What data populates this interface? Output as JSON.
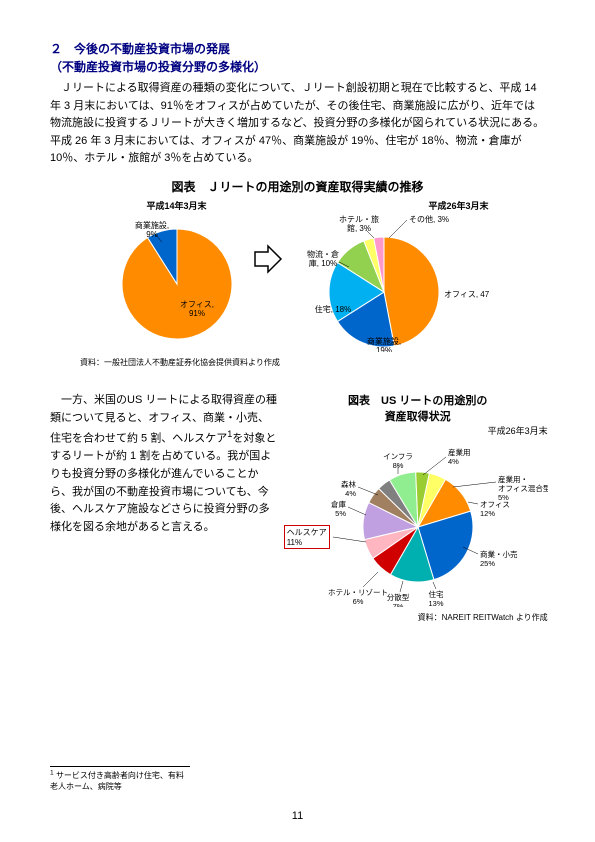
{
  "heading": {
    "line1": "２　今後の不動産投資市場の発展",
    "line2": "（不動産投資市場の投資分野の多様化）"
  },
  "para1": "Ｊリートによる取得資産の種類の変化について、Ｊリート創設初期と現在で比較すると、平成 14 年 3 月末においては、91％をオフィスが占めていたが、その後住宅、商業施設に広がり、近年では物流施設に投資するＪリートが大きく増加するなど、投資分野の多様化が図られている状況にある。平成 26 年 3 月末においては、オフィスが 47％、商業施設が 19％、住宅が 18％、物流・倉庫が 10％、ホテル・旅館が 3％を占めている。",
  "chart1": {
    "title": "図表　Ｊリートの用途別の資産取得実績の推移",
    "left_date": "平成14年3月末",
    "right_date": "平成26年3月末",
    "source": "資料：一般社団法人不動産証券化協会提供資料より作成",
    "left_pie": {
      "slices": [
        {
          "name": "オフィス",
          "pct": 91,
          "label": "オフィス,\n91%",
          "color": "#ff8c00"
        },
        {
          "name": "商業施設",
          "pct": 9,
          "label": "商業施設,\n9%",
          "color": "#0066cc"
        }
      ],
      "size": 110
    },
    "right_pie": {
      "slices": [
        {
          "name": "オフィス",
          "pct": 47,
          "label": "オフィス, 47%",
          "color": "#ff8c00"
        },
        {
          "name": "商業施設",
          "pct": 19,
          "label": "商業施設,\n19%",
          "color": "#0066cc"
        },
        {
          "name": "住宅",
          "pct": 18,
          "label": "住宅, 18%",
          "color": "#00b0f0"
        },
        {
          "name": "物流・倉庫",
          "pct": 10,
          "label": "物流・倉\n庫, 10%",
          "color": "#92d050"
        },
        {
          "name": "ホテル・旅館",
          "pct": 3,
          "label": "ホテル・旅\n館, 3%",
          "color": "#ffff66"
        },
        {
          "name": "その他",
          "pct": 3,
          "label": "その他, 3%",
          "color": "#ff99cc"
        }
      ],
      "size": 110
    }
  },
  "para2": "一方、米国のUS リートによる取得資産の種類について見ると、オフィス、商業・小売、住宅を合わせて約 5 割、ヘルスケア",
  "para2_sup": "1",
  "para2b": "を対象とするリートが約 1 割を占めている。我が国よりも投資分野の多様化が進んでいることから、我が国の不動産投資市場についても、今後、ヘルスケア施設などさらに投資分野の多様化を図る余地があると言える。",
  "chart2": {
    "title_l1": "図表　US リートの用途別の",
    "title_l2": "資産取得状況",
    "date": "平成26年3月末",
    "source": "資料：NAREIT REITWatch より作成",
    "highlight_label": "ヘルスケア\n11%",
    "pie": {
      "slices": [
        {
          "name": "オフィス",
          "pct": 12,
          "label": "オフィス\n12%",
          "color": "#ff8c00"
        },
        {
          "name": "商業・小売",
          "pct": 25,
          "label": "商業・小売\n25%",
          "color": "#0066cc"
        },
        {
          "name": "住宅",
          "pct": 13,
          "label": "住宅\n13%",
          "color": "#00b0b0"
        },
        {
          "name": "分散型",
          "pct": 7,
          "label": "分散型\n7%",
          "color": "#d00000"
        },
        {
          "name": "ホテル・リゾート",
          "pct": 6,
          "label": "ホテル・リゾート\n6%",
          "color": "#ffb6c1"
        },
        {
          "name": "ヘルスケア",
          "pct": 11,
          "label": "",
          "color": "#c0a0e0"
        },
        {
          "name": "倉庫",
          "pct": 5,
          "label": "倉庫\n5%",
          "color": "#a08060"
        },
        {
          "name": "森林",
          "pct": 4,
          "label": "森林\n4%",
          "color": "#808080"
        },
        {
          "name": "インフラ",
          "pct": 8,
          "label": "インフラ\n8%",
          "color": "#90ee90"
        },
        {
          "name": "産業用",
          "pct": 4,
          "label": "産業用\n4%",
          "color": "#9acd32"
        },
        {
          "name": "産業用・オフィス混合型",
          "pct": 5,
          "label": "産業用・\nオフィス混合型\n5%",
          "color": "#ffff66"
        }
      ],
      "size": 120
    }
  },
  "footnote": "サービス付き高齢者向け住宅、有料老人ホーム、病院等",
  "footnote_num": "1",
  "page": "11"
}
